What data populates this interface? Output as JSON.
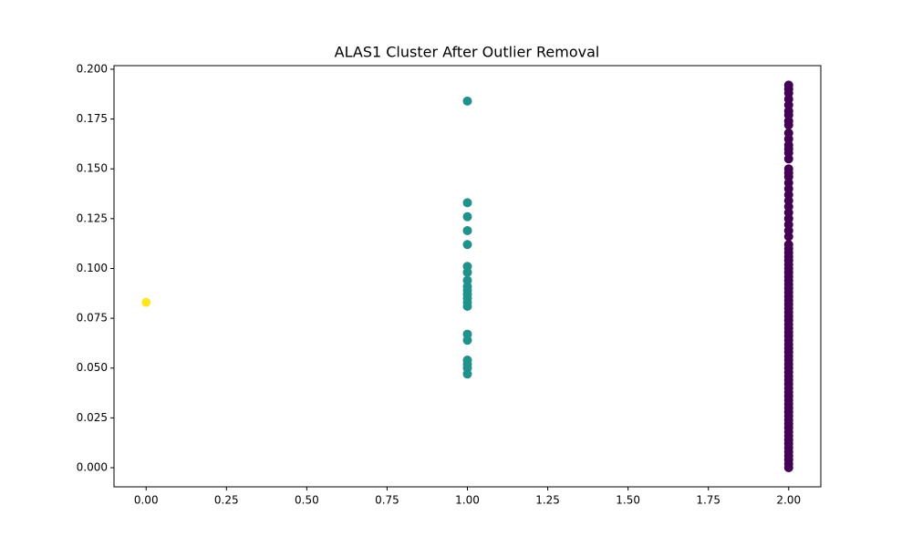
{
  "chart_data": {
    "type": "scatter",
    "title": "ALAS1 Cluster After Outlier Removal",
    "xlim": [
      -0.1,
      2.1
    ],
    "ylim": [
      -0.0096,
      0.2018
    ],
    "xticks": [
      {
        "value": 0,
        "label": "0.00"
      },
      {
        "value": 0.25,
        "label": "0.25"
      },
      {
        "value": 0.5,
        "label": "0.50"
      },
      {
        "value": 0.75,
        "label": "0.75"
      },
      {
        "value": 1,
        "label": "1.00"
      },
      {
        "value": 1.25,
        "label": "1.25"
      },
      {
        "value": 1.5,
        "label": "1.50"
      },
      {
        "value": 1.75,
        "label": "1.75"
      },
      {
        "value": 2,
        "label": "2.00"
      }
    ],
    "yticks": [
      {
        "value": 0,
        "label": "0.000"
      },
      {
        "value": 0.025,
        "label": "0.025"
      },
      {
        "value": 0.05,
        "label": "0.050"
      },
      {
        "value": 0.075,
        "label": "0.075"
      },
      {
        "value": 0.1,
        "label": "0.100"
      },
      {
        "value": 0.125,
        "label": "0.125"
      },
      {
        "value": 0.15,
        "label": "0.150"
      },
      {
        "value": 0.175,
        "label": "0.175"
      },
      {
        "value": 0.2,
        "label": "0.200"
      }
    ],
    "series": [
      {
        "color": "#fde725",
        "x": [
          0
        ],
        "values": [
          0.083
        ]
      },
      {
        "color": "#21918c",
        "x": [
          1,
          1,
          1,
          1,
          1,
          1,
          1,
          1,
          1,
          1,
          1,
          1,
          1,
          1,
          1,
          1,
          1,
          1,
          1,
          1
        ],
        "values": [
          0.184,
          0.133,
          0.126,
          0.119,
          0.112,
          0.101,
          0.098,
          0.094,
          0.091,
          0.089,
          0.087,
          0.085,
          0.083,
          0.081,
          0.067,
          0.064,
          0.054,
          0.052,
          0.05,
          0.047
        ]
      },
      {
        "color": "#440154",
        "x": [
          2,
          2,
          2,
          2,
          2,
          2,
          2,
          2,
          2,
          2,
          2,
          2,
          2,
          2,
          2,
          2,
          2,
          2,
          2,
          2,
          2,
          2,
          2,
          2,
          2,
          2,
          2,
          2,
          2,
          2,
          2,
          2,
          2,
          2,
          2,
          2,
          2,
          2,
          2,
          2,
          2,
          2,
          2,
          2,
          2,
          2,
          2,
          2,
          2,
          2,
          2,
          2,
          2,
          2,
          2,
          2,
          2,
          2,
          2,
          2,
          2,
          2,
          2,
          2,
          2,
          2,
          2,
          2,
          2,
          2,
          2,
          2,
          2,
          2,
          2,
          2,
          2,
          2,
          2,
          2,
          2,
          2,
          2,
          2,
          2
        ],
        "values": [
          0.192,
          0.19,
          0.188,
          0.185,
          0.182,
          0.179,
          0.177,
          0.174,
          0.172,
          0.168,
          0.165,
          0.162,
          0.16,
          0.158,
          0.155,
          0.15,
          0.148,
          0.146,
          0.143,
          0.14,
          0.137,
          0.134,
          0.131,
          0.128,
          0.125,
          0.122,
          0.119,
          0.116,
          0.112,
          0.11,
          0.108,
          0.106,
          0.104,
          0.102,
          0.1,
          0.098,
          0.096,
          0.094,
          0.092,
          0.09,
          0.088,
          0.086,
          0.084,
          0.082,
          0.08,
          0.078,
          0.076,
          0.074,
          0.072,
          0.07,
          0.068,
          0.066,
          0.064,
          0.062,
          0.06,
          0.058,
          0.056,
          0.054,
          0.052,
          0.05,
          0.048,
          0.046,
          0.044,
          0.042,
          0.04,
          0.038,
          0.036,
          0.034,
          0.032,
          0.03,
          0.028,
          0.026,
          0.024,
          0.022,
          0.02,
          0.018,
          0.016,
          0.014,
          0.012,
          0.01,
          0.008,
          0.006,
          0.004,
          0.002,
          0
        ]
      }
    ]
  }
}
